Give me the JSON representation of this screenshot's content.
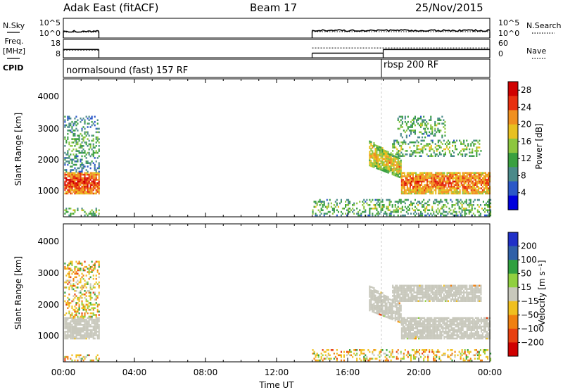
{
  "header": {
    "station": "Adak East (fitACF)",
    "beam": "Beam 17",
    "date": "25/Nov/2015"
  },
  "left_labels": {
    "nsky": "N.Sky",
    "freq": "Freq.",
    "freq_unit": "[MHz]",
    "cpid": "CPID"
  },
  "right_labels": {
    "nsearch": "N.Search",
    "nave": "Nave"
  },
  "chart_data": [
    {
      "type": "line",
      "name": "noise",
      "series": [
        {
          "name": "N.Sky",
          "segments": [
            [
              0.0,
              2.0,
              1.7
            ],
            [
              14.0,
              24.0,
              1.9
            ]
          ]
        },
        {
          "name": "N.Search",
          "segments": [
            [
              0.0,
              2.0,
              1.5
            ],
            [
              14.0,
              24.0,
              1.6
            ]
          ]
        }
      ],
      "y_left_ticks": [
        "10^5",
        "10^0"
      ],
      "y_right_ticks": [
        "10^5",
        "10^0"
      ]
    },
    {
      "type": "line",
      "name": "frequency",
      "series": [
        {
          "name": "Freq.",
          "segments": [
            [
              0.0,
              2.0,
              12.5
            ],
            [
              14.0,
              18.0,
              10.5
            ],
            [
              18.0,
              24.0,
              12.5
            ]
          ]
        },
        {
          "name": "Nave",
          "segments": [
            [
              0.0,
              2.0,
              25
            ],
            [
              14.0,
              24.0,
              32
            ]
          ]
        }
      ],
      "y_left_ticks": [
        "18",
        "8"
      ],
      "y_right_ticks": [
        "60",
        "0"
      ]
    },
    {
      "type": "table",
      "name": "cpid",
      "items": [
        {
          "label": "normalsound (fast) 157 RF",
          "start": 0.0
        },
        {
          "label": "rbsp 200 RF",
          "start": 18.0
        }
      ]
    },
    {
      "type": "heatmap",
      "name": "power",
      "ylabel": "Slant Range [km]",
      "yticks": [
        "1000",
        "2000",
        "3000",
        "4000"
      ],
      "ylim": [
        180,
        4600
      ],
      "xlim": [
        0,
        24
      ],
      "colorbar": {
        "label": "Power [dB]",
        "ticks": [
          "4",
          "8",
          "12",
          "16",
          "20",
          "24",
          "28"
        ],
        "range": [
          0,
          30
        ],
        "colors": [
          "#0000dd",
          "#2b58c8",
          "#4a8a8a",
          "#3aa040",
          "#8dc63f",
          "#e8c020",
          "#f09020",
          "#e83010",
          "#d00000"
        ]
      },
      "echo_regions": [
        {
          "t0": 0.05,
          "t1": 2.0,
          "r0": 900,
          "r1": 1600,
          "level": 20
        },
        {
          "t0": 0.05,
          "t1": 2.0,
          "r0": 1600,
          "r1": 3400,
          "level": 7
        },
        {
          "t0": 0.05,
          "t1": 2.0,
          "r0": 200,
          "r1": 450,
          "level": 10
        },
        {
          "t0": 14.0,
          "t1": 24.0,
          "r0": 200,
          "r1": 700,
          "level": 9
        },
        {
          "t0": 17.2,
          "t1": 19.0,
          "r0": 1800,
          "r1": 2600,
          "level": 14,
          "r0_end": 1400,
          "r1_end": 2000
        },
        {
          "t0": 19.0,
          "t1": 24.0,
          "r0": 900,
          "r1": 1600,
          "level": 18
        },
        {
          "t0": 18.5,
          "t1": 23.5,
          "r0": 2100,
          "r1": 2600,
          "level": 10
        },
        {
          "t0": 18.8,
          "t1": 21.5,
          "r0": 2700,
          "r1": 3400,
          "level": 8
        }
      ]
    },
    {
      "type": "heatmap",
      "name": "velocity",
      "ylabel": "Slant Range [km]",
      "yticks": [
        "1000",
        "2000",
        "3000",
        "4000"
      ],
      "ylim": [
        180,
        4600
      ],
      "xlim": [
        0,
        24
      ],
      "colorbar": {
        "label": "Velocity [m s⁻¹]",
        "ticks": [
          "200",
          "100",
          "50",
          "15",
          "−15",
          "−50",
          "−100",
          "−200"
        ],
        "colors": [
          "#2030c8",
          "#3060a8",
          "#30a040",
          "#90d040",
          "#c8c8bc",
          "#f0c020",
          "#f08010",
          "#e84010",
          "#d00000"
        ]
      },
      "echo_regions": [
        {
          "t0": 0.05,
          "t1": 2.0,
          "r0": 900,
          "r1": 1600,
          "level": 15
        },
        {
          "t0": 0.05,
          "t1": 2.0,
          "r0": 1600,
          "r1": 3400,
          "level": 5
        },
        {
          "t0": 0.05,
          "t1": 2.0,
          "r0": 200,
          "r1": 400,
          "level": 5
        },
        {
          "t0": 14.0,
          "t1": 24.0,
          "r0": 200,
          "r1": 550,
          "level": 5
        },
        {
          "t0": 17.2,
          "t1": 19.0,
          "r0": 1800,
          "r1": 2600,
          "level": 15,
          "r0_end": 1400,
          "r1_end": 2000
        },
        {
          "t0": 19.0,
          "t1": 24.0,
          "r0": 900,
          "r1": 1600,
          "level": 15
        },
        {
          "t0": 18.5,
          "t1": 23.5,
          "r0": 2100,
          "r1": 2600,
          "level": 15
        }
      ],
      "xlabel": "Time UT",
      "xticks": [
        "00:00",
        "04:00",
        "08:00",
        "12:00",
        "16:00",
        "20:00",
        "00:00"
      ]
    }
  ]
}
